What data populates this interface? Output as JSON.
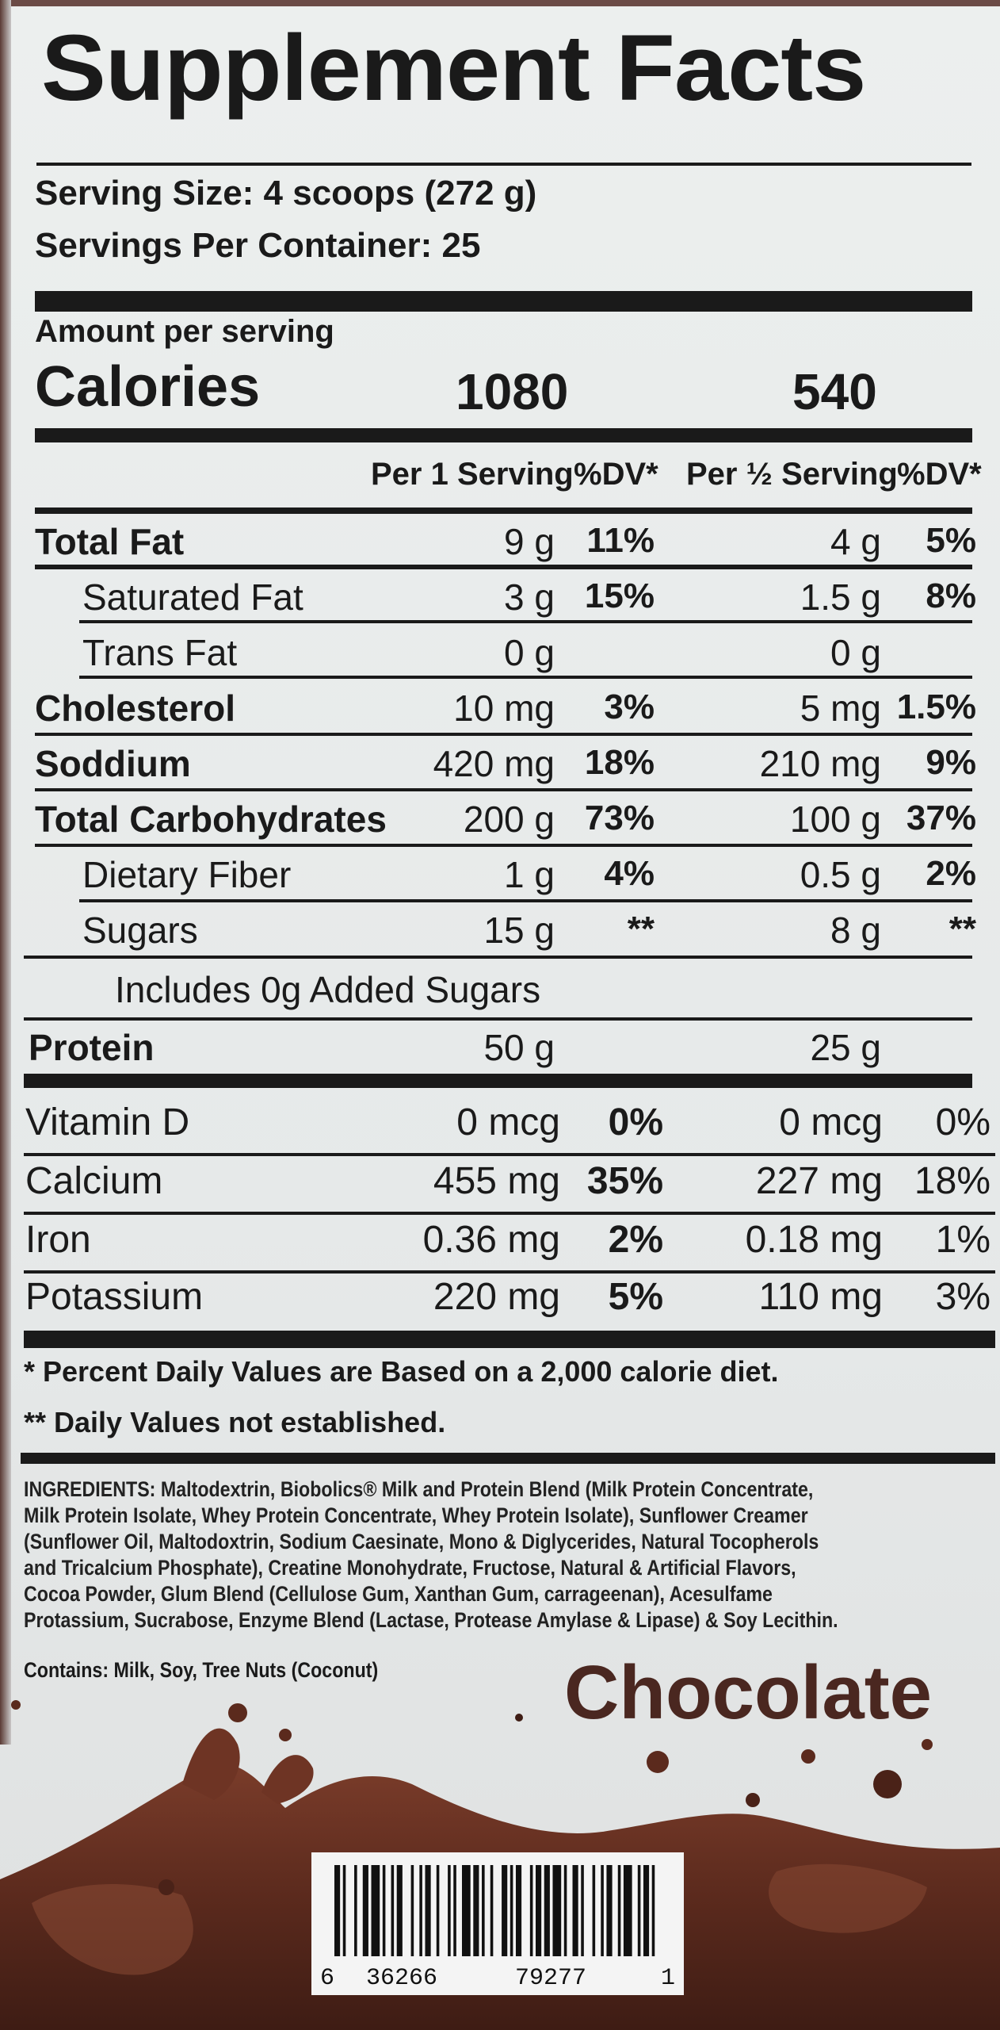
{
  "label": {
    "title": "Supplement Facts",
    "serving_size": "Serving Size: 4 scoops (272 g)",
    "servings_per_container": "Servings Per Container:  25",
    "amount_per_serving": "Amount per serving",
    "calories_label": "Calories",
    "calories_full": "1080",
    "calories_half": "540",
    "col_per_serving": "Per 1 Serving",
    "col_dv": "%DV*",
    "col_per_half": "Per ½ Serving",
    "col_dv_half": "%DV*",
    "nutrients": [
      {
        "name": "Total Fat",
        "full": "9 g",
        "dv": "11%",
        "half": "4 g",
        "dv_half": "5%"
      },
      {
        "name": "Saturated Fat",
        "full": "3 g",
        "dv": "15%",
        "half": "1.5 g",
        "dv_half": "8%"
      },
      {
        "name": "Trans Fat",
        "full": "0 g",
        "dv": "",
        "half": "0 g",
        "dv_half": ""
      },
      {
        "name": "Cholesterol",
        "full": "10 mg",
        "dv": "3%",
        "half": "5 mg",
        "dv_half": "1.5%"
      },
      {
        "name": "Soddium",
        "full": "420 mg",
        "dv": "18%",
        "half": "210 mg",
        "dv_half": "9%"
      },
      {
        "name": "Total Carbohydrates",
        "full": "200 g",
        "dv": "73%",
        "half": "100 g",
        "dv_half": "37%"
      },
      {
        "name": "Dietary Fiber",
        "full": "1 g",
        "dv": "4%",
        "half": "0.5 g",
        "dv_half": "2%"
      },
      {
        "name": "Sugars",
        "full": "15 g",
        "dv": "**",
        "half": "8 g",
        "dv_half": "**"
      }
    ],
    "added_sugars": "Includes 0g Added Sugars",
    "protein": {
      "name": "Protein",
      "full": "50 g",
      "half": "25 g"
    },
    "minerals": [
      {
        "name": "Vitamin D",
        "full": "0 mcg",
        "dv": "0%",
        "half": "0 mcg",
        "dv_half": "0%"
      },
      {
        "name": "Calcium",
        "full": "455 mg",
        "dv": "35%",
        "half": "227 mg",
        "dv_half": "18%"
      },
      {
        "name": "Iron",
        "full": "0.36 mg",
        "dv": "2%",
        "half": "0.18 mg",
        "dv_half": "1%"
      },
      {
        "name": "Potassium",
        "full": "220 mg",
        "dv": "5%",
        "half": "110 mg",
        "dv_half": "3%"
      }
    ],
    "footnote1": "* Percent Daily Values are Based on a 2,000 calorie diet.",
    "footnote2": "** Daily Values not established."
  },
  "ingredients": {
    "label": "INGREDIENTS:",
    "part1": " Maltodextrin, ",
    "blend_name": "Biobolics® Milk and Protein Blend",
    "part2": " (Milk Protein Concentrate, Milk Protein Isolate, Whey Protein Concentrate, Whey Protein Isolate), Sunflower Creamer (Sunflower Oil, Maltodoxtrin, Sodium Caesinate, Mono & Diglycerides, Natural Tocopherols and Tricalcium Phosphate), Creatine Monohydrate, Fructose, Natural & Artificial Flavors, Cocoa Powder, Glum Blend (Cellulose Gum, Xanthan Gum, carrageenan), Acesulfame Protassium, Sucrabose, Enzyme Blend (Lactase, Protease Amylase & Lipase) & Soy Lecithin.",
    "contains_label": "Contains:",
    "contains": " Milk, Soy, Tree Nuts (Coconut)"
  },
  "flavor": "Chocolate",
  "barcode": {
    "lead": "6",
    "group1": "36266",
    "group2": "79277",
    "check": "1"
  },
  "colors": {
    "ink": "#1a1a1a",
    "chocolate_text": "#4a2720",
    "chocolate": "#5b2c20",
    "label_bg": "#eceeed"
  }
}
